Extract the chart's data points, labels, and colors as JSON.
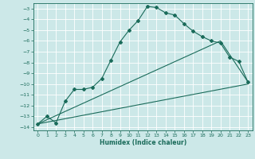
{
  "background_color": "#cce8e8",
  "grid_color": "#ffffff",
  "line_color": "#1a6b5a",
  "xlabel": "Humidex (Indice chaleur)",
  "xlim": [
    -0.5,
    23.5
  ],
  "ylim": [
    -14.3,
    -2.5
  ],
  "xticks": [
    0,
    1,
    2,
    3,
    4,
    5,
    6,
    7,
    8,
    9,
    10,
    11,
    12,
    13,
    14,
    15,
    16,
    17,
    18,
    19,
    20,
    21,
    22,
    23
  ],
  "yticks": [
    -14,
    -13,
    -12,
    -11,
    -10,
    -9,
    -8,
    -7,
    -6,
    -5,
    -4,
    -3
  ],
  "curve1_x": [
    0,
    1,
    2,
    3,
    4,
    5,
    6,
    7,
    8,
    9,
    10,
    11,
    12,
    13,
    14,
    15,
    16,
    17,
    18,
    19,
    20,
    21,
    22,
    23
  ],
  "curve1_y": [
    -13.7,
    -13.0,
    -13.6,
    -11.6,
    -10.5,
    -10.5,
    -10.3,
    -9.5,
    -7.8,
    -6.1,
    -5.0,
    -4.1,
    -2.8,
    -2.9,
    -3.4,
    -3.6,
    -4.4,
    -5.1,
    -5.6,
    -6.0,
    -6.2,
    -7.5,
    -7.9,
    -9.8
  ],
  "curve2_x": [
    0,
    23
  ],
  "curve2_y": [
    -13.7,
    -10.0
  ],
  "curve3_x": [
    0,
    20,
    23
  ],
  "curve3_y": [
    -13.7,
    -6.0,
    -9.8
  ]
}
